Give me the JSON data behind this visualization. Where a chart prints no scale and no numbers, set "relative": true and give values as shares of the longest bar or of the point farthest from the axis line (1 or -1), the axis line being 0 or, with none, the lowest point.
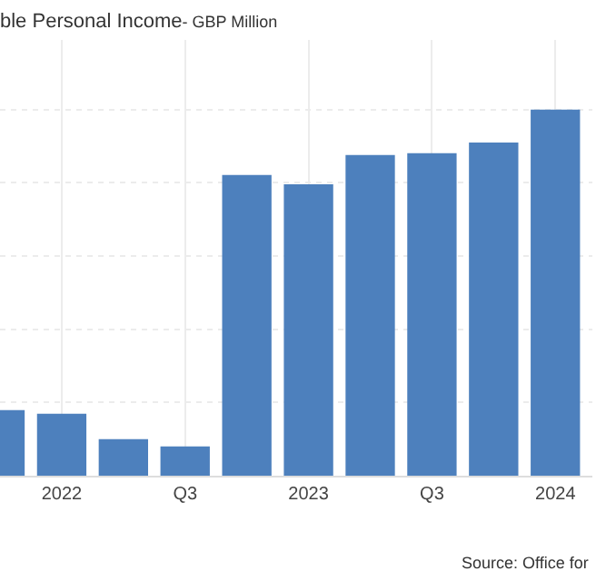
{
  "chart_data": {
    "type": "bar",
    "title": "ble Personal Income",
    "subtitle": "- GBP Million",
    "relative": true,
    "categories": [
      null,
      "2022",
      null,
      "Q3",
      null,
      "2023",
      null,
      "Q3",
      null,
      "2024"
    ],
    "values": [
      0.179,
      0.169,
      0.1,
      0.08,
      0.821,
      0.796,
      0.876,
      0.881,
      0.91,
      1
    ],
    "color": "#4d80bd",
    "grid": true,
    "annotations": [
      "Source: Office for"
    ]
  }
}
